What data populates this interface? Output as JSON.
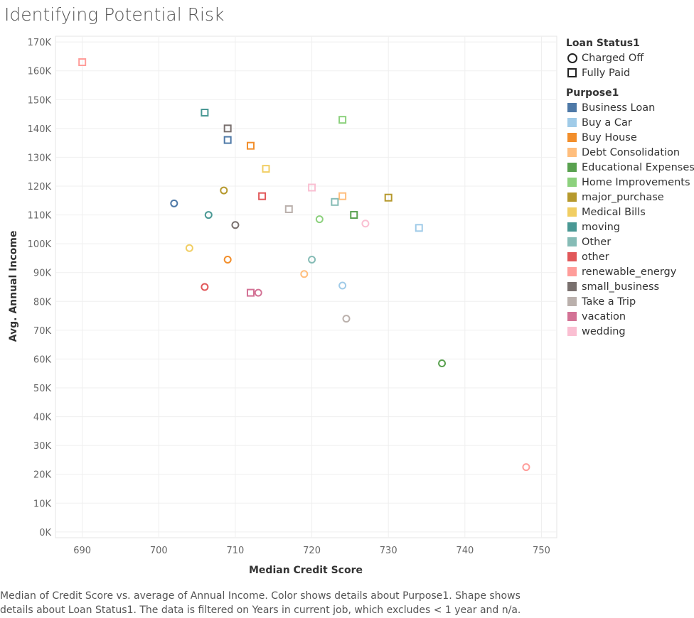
{
  "title": "Identifying Potential Risk",
  "caption": "Median of Credit Score vs. average of Annual Income.  Color shows details about Purpose1.  Shape shows details about Loan Status1. The data is filtered on Years in current job, which excludes < 1 year and n/a.",
  "legend_shape": {
    "title": "Loan Status1",
    "items": [
      {
        "label": "Charged Off",
        "shape": "circle-icon"
      },
      {
        "label": "Fully Paid",
        "shape": "square-icon"
      }
    ]
  },
  "legend_color": {
    "title": "Purpose1",
    "items": [
      {
        "label": "Business Loan",
        "color": "#4e79a7"
      },
      {
        "label": "Buy a Car",
        "color": "#a0cbe8"
      },
      {
        "label": "Buy House",
        "color": "#f28e2b"
      },
      {
        "label": "Debt Consolidation",
        "color": "#ffbe7d"
      },
      {
        "label": "Educational Expenses",
        "color": "#59a14f"
      },
      {
        "label": "Home Improvements",
        "color": "#8cd17d"
      },
      {
        "label": "major_purchase",
        "color": "#b6992d"
      },
      {
        "label": "Medical Bills",
        "color": "#f1ce63"
      },
      {
        "label": "moving",
        "color": "#499894"
      },
      {
        "label": "Other",
        "color": "#86bcb6"
      },
      {
        "label": "other",
        "color": "#e15759"
      },
      {
        "label": "renewable_energy",
        "color": "#ff9d9a"
      },
      {
        "label": "small_business",
        "color": "#79706e"
      },
      {
        "label": "Take a Trip",
        "color": "#bab0ac"
      },
      {
        "label": "vacation",
        "color": "#d37295"
      },
      {
        "label": "wedding",
        "color": "#fabfd2"
      }
    ]
  },
  "chart_data": {
    "type": "scatter",
    "title": "Identifying Potential Risk",
    "xlabel": "Median Credit Score",
    "ylabel": "Avg. Annual Income",
    "xlim": [
      686.5,
      752
    ],
    "ylim": [
      -2000,
      172000
    ],
    "x_ticks": [
      690,
      700,
      710,
      720,
      730,
      740,
      750
    ],
    "y_ticks": [
      0,
      10000,
      20000,
      30000,
      40000,
      50000,
      60000,
      70000,
      80000,
      90000,
      100000,
      110000,
      120000,
      130000,
      140000,
      150000,
      160000,
      170000
    ],
    "y_tick_labels": [
      "0K",
      "10K",
      "20K",
      "30K",
      "40K",
      "50K",
      "60K",
      "70K",
      "80K",
      "90K",
      "100K",
      "110K",
      "120K",
      "130K",
      "140K",
      "150K",
      "160K",
      "170K"
    ],
    "grid": true,
    "legend_position": "right",
    "points": [
      {
        "purpose": "renewable_energy",
        "status": "Fully Paid",
        "x": 690,
        "y": 163000
      },
      {
        "purpose": "moving",
        "status": "Fully Paid",
        "x": 706,
        "y": 145500
      },
      {
        "purpose": "small_business",
        "status": "Fully Paid",
        "x": 709,
        "y": 140000
      },
      {
        "purpose": "Business Loan",
        "status": "Fully Paid",
        "x": 709,
        "y": 136000
      },
      {
        "purpose": "Buy House",
        "status": "Fully Paid",
        "x": 712,
        "y": 134000
      },
      {
        "purpose": "Home Improvements",
        "status": "Fully Paid",
        "x": 724,
        "y": 143000
      },
      {
        "purpose": "Medical Bills",
        "status": "Fully Paid",
        "x": 714,
        "y": 126000
      },
      {
        "purpose": "wedding",
        "status": "Fully Paid",
        "x": 720,
        "y": 119500
      },
      {
        "purpose": "major_purchase",
        "status": "Charged Off",
        "x": 708.5,
        "y": 118500
      },
      {
        "purpose": "other",
        "status": "Fully Paid",
        "x": 713.5,
        "y": 116500
      },
      {
        "purpose": "Debt Consolidation",
        "status": "Fully Paid",
        "x": 724,
        "y": 116500
      },
      {
        "purpose": "major_purchase",
        "status": "Fully Paid",
        "x": 730,
        "y": 116000
      },
      {
        "purpose": "Business Loan",
        "status": "Charged Off",
        "x": 702,
        "y": 114000
      },
      {
        "purpose": "Other",
        "status": "Fully Paid",
        "x": 723,
        "y": 114500
      },
      {
        "purpose": "Take a Trip",
        "status": "Fully Paid",
        "x": 717,
        "y": 112000
      },
      {
        "purpose": "moving",
        "status": "Charged Off",
        "x": 706.5,
        "y": 110000
      },
      {
        "purpose": "Educational Expenses",
        "status": "Fully Paid",
        "x": 725.5,
        "y": 110000
      },
      {
        "purpose": "Home Improvements",
        "status": "Charged Off",
        "x": 721,
        "y": 108500
      },
      {
        "purpose": "wedding",
        "status": "Charged Off",
        "x": 727,
        "y": 107000
      },
      {
        "purpose": "small_business",
        "status": "Charged Off",
        "x": 710,
        "y": 106500
      },
      {
        "purpose": "Buy a Car",
        "status": "Fully Paid",
        "x": 734,
        "y": 105500
      },
      {
        "purpose": "Medical Bills",
        "status": "Charged Off",
        "x": 704,
        "y": 98500
      },
      {
        "purpose": "Buy House",
        "status": "Charged Off",
        "x": 709,
        "y": 94500
      },
      {
        "purpose": "Other",
        "status": "Charged Off",
        "x": 720,
        "y": 94500
      },
      {
        "purpose": "Debt Consolidation",
        "status": "Charged Off",
        "x": 719,
        "y": 89500
      },
      {
        "purpose": "Buy a Car",
        "status": "Charged Off",
        "x": 724,
        "y": 85500
      },
      {
        "purpose": "other",
        "status": "Charged Off",
        "x": 706,
        "y": 85000
      },
      {
        "purpose": "vacation",
        "status": "Fully Paid",
        "x": 712,
        "y": 83000
      },
      {
        "purpose": "vacation",
        "status": "Charged Off",
        "x": 713,
        "y": 83000
      },
      {
        "purpose": "Take a Trip",
        "status": "Charged Off",
        "x": 724.5,
        "y": 74000
      },
      {
        "purpose": "Educational Expenses",
        "status": "Charged Off",
        "x": 737,
        "y": 58500
      },
      {
        "purpose": "renewable_energy",
        "status": "Charged Off",
        "x": 748,
        "y": 22500
      }
    ]
  }
}
